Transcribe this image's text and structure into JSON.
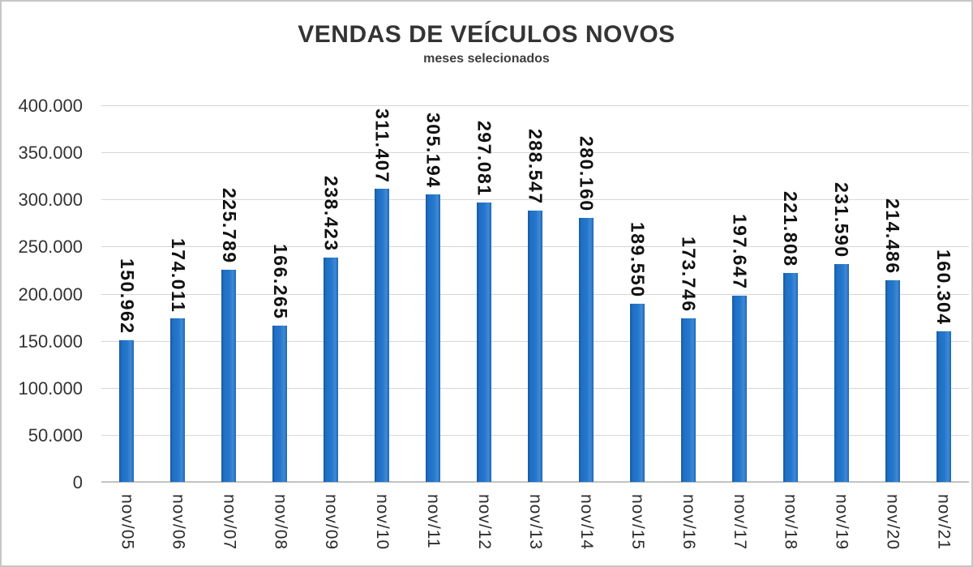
{
  "chart_data": {
    "type": "bar",
    "title": "VENDAS DE VEÍCULOS NOVOS",
    "subtitle": "meses selecionados",
    "categories": [
      "nov/05",
      "nov/06",
      "nov/07",
      "nov/08",
      "nov/09",
      "nov/10",
      "nov/11",
      "nov/12",
      "nov/13",
      "nov/14",
      "nov/15",
      "nov/16",
      "nov/17",
      "nov/18",
      "nov/19",
      "nov/20",
      "nov/21"
    ],
    "values": [
      150962,
      174011,
      225789,
      166265,
      238423,
      311407,
      305194,
      297081,
      288547,
      280160,
      189550,
      173746,
      197647,
      221808,
      231590,
      214486,
      160304
    ],
    "value_labels": [
      "150.962",
      "174.011",
      "225.789",
      "166.265",
      "238.423",
      "311.407",
      "305.194",
      "297.081",
      "288.547",
      "280.160",
      "189.550",
      "173.746",
      "197.647",
      "221.808",
      "231.590",
      "214.486",
      "160.304"
    ],
    "y_ticks": [
      "400.000",
      "350.000",
      "300.000",
      "250.000",
      "200.000",
      "150.000",
      "100.000",
      "50.000",
      "0"
    ],
    "ylim": [
      0,
      400000
    ],
    "xlabel": "",
    "ylabel": "",
    "grid": true,
    "legend": "none",
    "bar_color": "#2273c8",
    "gridline_color": "#d6d6d6",
    "label_rotation": "vertical"
  }
}
